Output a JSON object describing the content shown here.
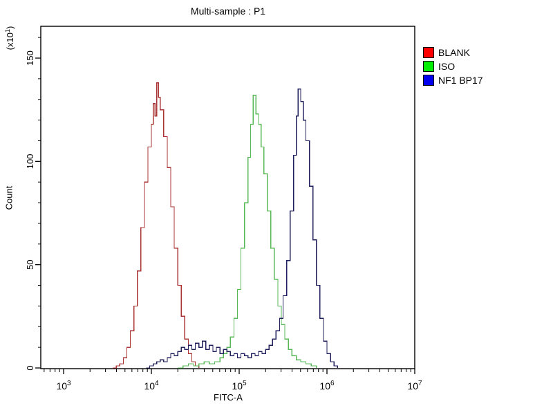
{
  "title": "Multi-sample : P1",
  "axes": {
    "x": {
      "label": "FITC-A",
      "scale": "log",
      "major_exponents": [
        3,
        4,
        5,
        6,
        7
      ]
    },
    "y": {
      "label": "Count",
      "multiplier_base": "(x10",
      "multiplier_exp": "1",
      "multiplier_close": ")",
      "major_ticks": [
        0,
        50,
        100,
        150
      ],
      "minor_step": 10
    }
  },
  "legend": {
    "items": [
      {
        "label": "BLANK",
        "color": "#ff0000"
      },
      {
        "label": "ISO",
        "color": "#00ee00"
      },
      {
        "label": "NF1 BP17",
        "color": "#0000ee"
      }
    ]
  },
  "chart_data": {
    "type": "line",
    "subtype": "flow-cytometry-histogram-overlay",
    "title": "Multi-sample : P1",
    "xlabel": "FITC-A",
    "ylabel": "Count",
    "y_units_multiplier": "x10^1",
    "x_scale": "log10",
    "x_range_log10": [
      2.74,
      7.0
    ],
    "y_range": [
      0,
      165
    ],
    "grid": false,
    "legend_position": "right-outside",
    "series": [
      {
        "name": "BLANK",
        "color": "#aa3333",
        "legend_color": "#ff0000",
        "peak_x": 12000,
        "peak_count": 138,
        "points": [
          [
            3.56,
            0
          ],
          [
            3.6,
            1
          ],
          [
            3.64,
            2
          ],
          [
            3.68,
            5
          ],
          [
            3.72,
            10
          ],
          [
            3.76,
            18
          ],
          [
            3.8,
            30
          ],
          [
            3.84,
            47
          ],
          [
            3.88,
            68
          ],
          [
            3.92,
            90
          ],
          [
            3.96,
            107
          ],
          [
            4.0,
            118
          ],
          [
            4.02,
            128
          ],
          [
            4.04,
            122
          ],
          [
            4.06,
            138
          ],
          [
            4.08,
            131
          ],
          [
            4.1,
            125
          ],
          [
            4.14,
            112
          ],
          [
            4.18,
            97
          ],
          [
            4.22,
            78
          ],
          [
            4.26,
            58
          ],
          [
            4.3,
            40
          ],
          [
            4.34,
            25
          ],
          [
            4.38,
            14
          ],
          [
            4.42,
            7
          ],
          [
            4.46,
            3
          ],
          [
            4.5,
            1
          ],
          [
            4.54,
            0
          ]
        ]
      },
      {
        "name": "ISO",
        "color": "#58b858",
        "legend_color": "#00ee00",
        "peak_x": 145000,
        "peak_count": 132,
        "points": [
          [
            4.3,
            0
          ],
          [
            4.36,
            1
          ],
          [
            4.42,
            2
          ],
          [
            4.48,
            1
          ],
          [
            4.54,
            2
          ],
          [
            4.6,
            3
          ],
          [
            4.66,
            2
          ],
          [
            4.72,
            3
          ],
          [
            4.78,
            5
          ],
          [
            4.82,
            7
          ],
          [
            4.86,
            10
          ],
          [
            4.9,
            15
          ],
          [
            4.94,
            24
          ],
          [
            4.98,
            38
          ],
          [
            5.02,
            58
          ],
          [
            5.06,
            80
          ],
          [
            5.1,
            102
          ],
          [
            5.13,
            118
          ],
          [
            5.16,
            132
          ],
          [
            5.19,
            123
          ],
          [
            5.22,
            118
          ],
          [
            5.25,
            107
          ],
          [
            5.28,
            94
          ],
          [
            5.32,
            76
          ],
          [
            5.36,
            58
          ],
          [
            5.4,
            43
          ],
          [
            5.44,
            30
          ],
          [
            5.48,
            21
          ],
          [
            5.52,
            14
          ],
          [
            5.56,
            9
          ],
          [
            5.6,
            6
          ],
          [
            5.65,
            4
          ],
          [
            5.7,
            3
          ],
          [
            5.76,
            2
          ],
          [
            5.82,
            1
          ],
          [
            5.88,
            0
          ]
        ]
      },
      {
        "name": "NF1 BP17",
        "color": "#20205e",
        "legend_color": "#0000ee",
        "peak_x": 470000,
        "peak_count": 135,
        "points": [
          [
            3.94,
            0
          ],
          [
            3.98,
            1
          ],
          [
            4.02,
            2
          ],
          [
            4.06,
            3
          ],
          [
            4.1,
            4
          ],
          [
            4.14,
            3
          ],
          [
            4.18,
            5
          ],
          [
            4.22,
            7
          ],
          [
            4.26,
            6
          ],
          [
            4.3,
            8
          ],
          [
            4.34,
            10
          ],
          [
            4.38,
            9
          ],
          [
            4.42,
            11
          ],
          [
            4.46,
            9
          ],
          [
            4.5,
            12
          ],
          [
            4.54,
            10
          ],
          [
            4.58,
            13
          ],
          [
            4.62,
            9
          ],
          [
            4.66,
            11
          ],
          [
            4.7,
            8
          ],
          [
            4.74,
            10
          ],
          [
            4.78,
            7
          ],
          [
            4.82,
            9
          ],
          [
            4.86,
            8
          ],
          [
            4.9,
            6
          ],
          [
            4.94,
            7
          ],
          [
            4.98,
            5
          ],
          [
            5.02,
            7
          ],
          [
            5.06,
            6
          ],
          [
            5.1,
            5
          ],
          [
            5.14,
            7
          ],
          [
            5.18,
            6
          ],
          [
            5.22,
            8
          ],
          [
            5.26,
            7
          ],
          [
            5.3,
            9
          ],
          [
            5.34,
            11
          ],
          [
            5.38,
            14
          ],
          [
            5.42,
            18
          ],
          [
            5.46,
            24
          ],
          [
            5.5,
            35
          ],
          [
            5.54,
            52
          ],
          [
            5.58,
            76
          ],
          [
            5.62,
            103
          ],
          [
            5.65,
            122
          ],
          [
            5.67,
            135
          ],
          [
            5.7,
            129
          ],
          [
            5.73,
            120
          ],
          [
            5.76,
            110
          ],
          [
            5.8,
            88
          ],
          [
            5.84,
            62
          ],
          [
            5.88,
            40
          ],
          [
            5.92,
            24
          ],
          [
            5.96,
            13
          ],
          [
            6.0,
            7
          ],
          [
            6.04,
            3
          ],
          [
            6.08,
            1
          ],
          [
            6.12,
            0
          ]
        ]
      }
    ]
  }
}
